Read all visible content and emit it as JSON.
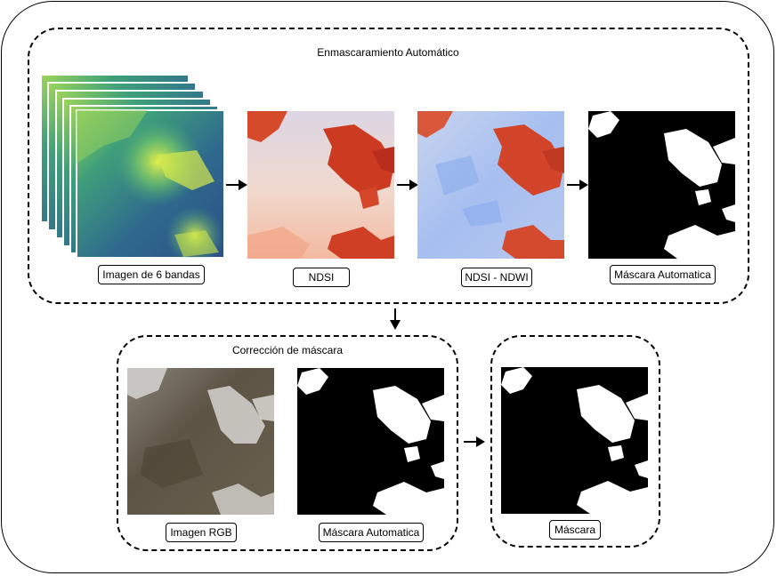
{
  "groups": {
    "automatic": {
      "title": "Enmascaramiento Automático"
    },
    "correction": {
      "title": "Corrección de máscara"
    }
  },
  "labels": {
    "bands": "Imagen de 6 bandas",
    "ndsi": "NDSI",
    "ndsi_ndwi": "NDSI - NDWI",
    "auto_mask": "Máscara Automatica",
    "rgb": "Imagen RGB",
    "auto_mask_2": "Máscara Automatica",
    "final_mask": "Máscara"
  },
  "colors": {
    "viridis_dark": "#2f5c8a",
    "viridis_green": "#3fa07a",
    "viridis_yellow": "#c9e04a",
    "ndsi_red": "#d03b22",
    "ndsi_pale": "#f3d4c7",
    "ndwi_blue": "#9ab8ee",
    "mask_black": "#000000",
    "mask_white": "#ffffff",
    "rgb_brown": "#5e5446"
  }
}
